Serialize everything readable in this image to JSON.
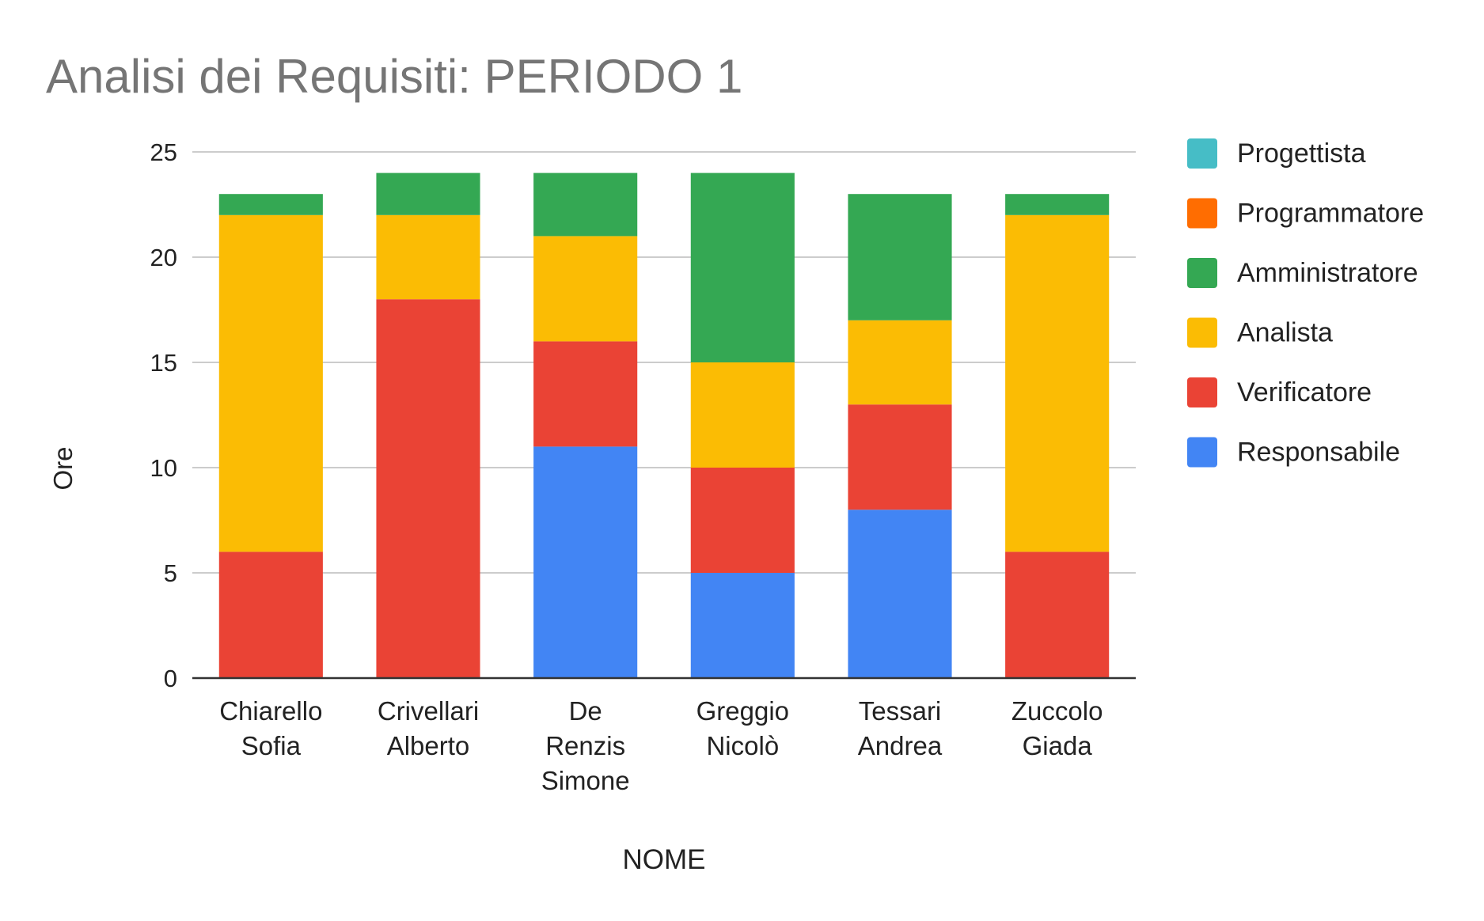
{
  "chart_data": {
    "type": "bar",
    "stacked": true,
    "title": "Analisi dei Requisiti: PERIODO 1",
    "xlabel": "NOME",
    "ylabel": "Ore",
    "ylim": [
      0,
      25
    ],
    "yticks": [
      0,
      5,
      10,
      15,
      20,
      25
    ],
    "grid": true,
    "legend_position": "right",
    "categories": [
      [
        "Chiarello",
        "Sofia"
      ],
      [
        "Crivellari",
        "Alberto"
      ],
      [
        "De",
        "Renzis",
        "Simone"
      ],
      [
        "Greggio",
        "Nicolò"
      ],
      [
        "Tessari",
        "Andrea"
      ],
      [
        "Zuccolo",
        "Giada"
      ]
    ],
    "series": [
      {
        "name": "Responsabile",
        "color": "#4285F4",
        "values": [
          0,
          0,
          11,
          5,
          8,
          0
        ]
      },
      {
        "name": "Verificatore",
        "color": "#EA4335",
        "values": [
          6,
          18,
          5,
          5,
          5,
          6
        ]
      },
      {
        "name": "Analista",
        "color": "#FBBC04",
        "values": [
          16,
          4,
          5,
          5,
          4,
          16
        ]
      },
      {
        "name": "Amministratore",
        "color": "#34A853",
        "values": [
          1,
          2,
          3,
          9,
          6,
          1
        ]
      },
      {
        "name": "Programmatore",
        "color": "#FF6D01",
        "values": [
          0,
          0,
          0,
          0,
          0,
          0
        ]
      },
      {
        "name": "Progettista",
        "color": "#46BDC6",
        "values": [
          0,
          0,
          0,
          0,
          0,
          0
        ]
      }
    ],
    "legend_order": [
      "Progettista",
      "Programmatore",
      "Amministratore",
      "Analista",
      "Verificatore",
      "Responsabile"
    ]
  }
}
